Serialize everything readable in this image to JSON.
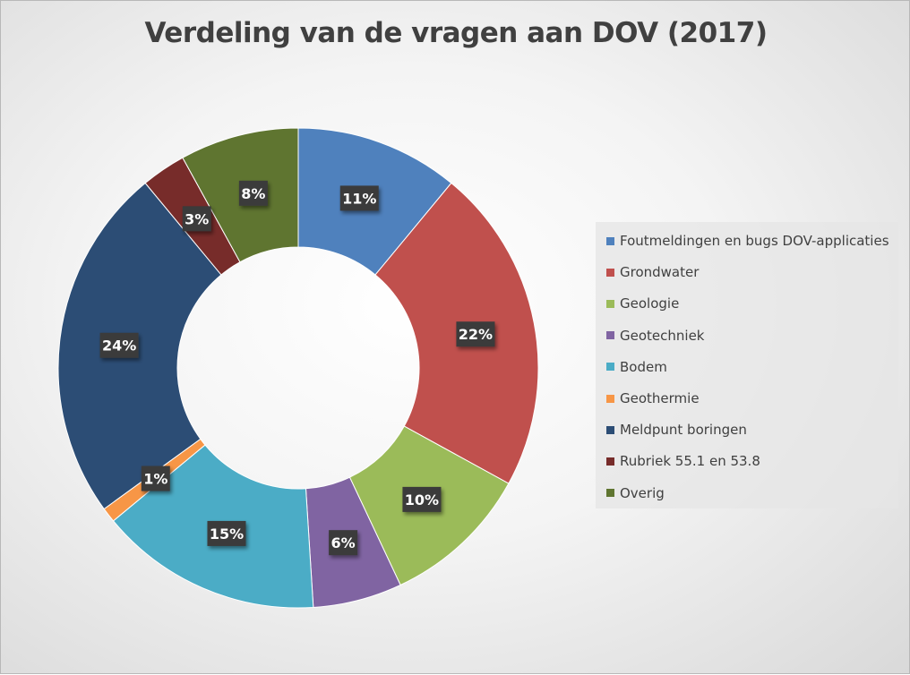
{
  "chart_data": {
    "type": "pie",
    "variant": "donut",
    "title": "Verdeling van de vragen aan DOV (2017)",
    "legend_position": "right",
    "categories": [
      "Foutmeldingen en bugs DOV-applicaties",
      "Grondwater",
      "Geologie",
      "Geotechniek",
      "Bodem",
      "Geothermie",
      "Meldpunt boringen",
      "Rubriek 55.1 en 53.8",
      "Overig"
    ],
    "values": [
      11,
      22,
      10,
      6,
      15,
      1,
      24,
      3,
      8
    ],
    "data_labels": [
      "11%",
      "22%",
      "10%",
      "6%",
      "15%",
      "1%",
      "24%",
      "3%",
      "8%"
    ],
    "colors": [
      "#4F81BD",
      "#C0504D",
      "#9BBB59",
      "#8064A2",
      "#4BACC6",
      "#F79646",
      "#2C4D75",
      "#772C2A",
      "#5F7530"
    ]
  }
}
